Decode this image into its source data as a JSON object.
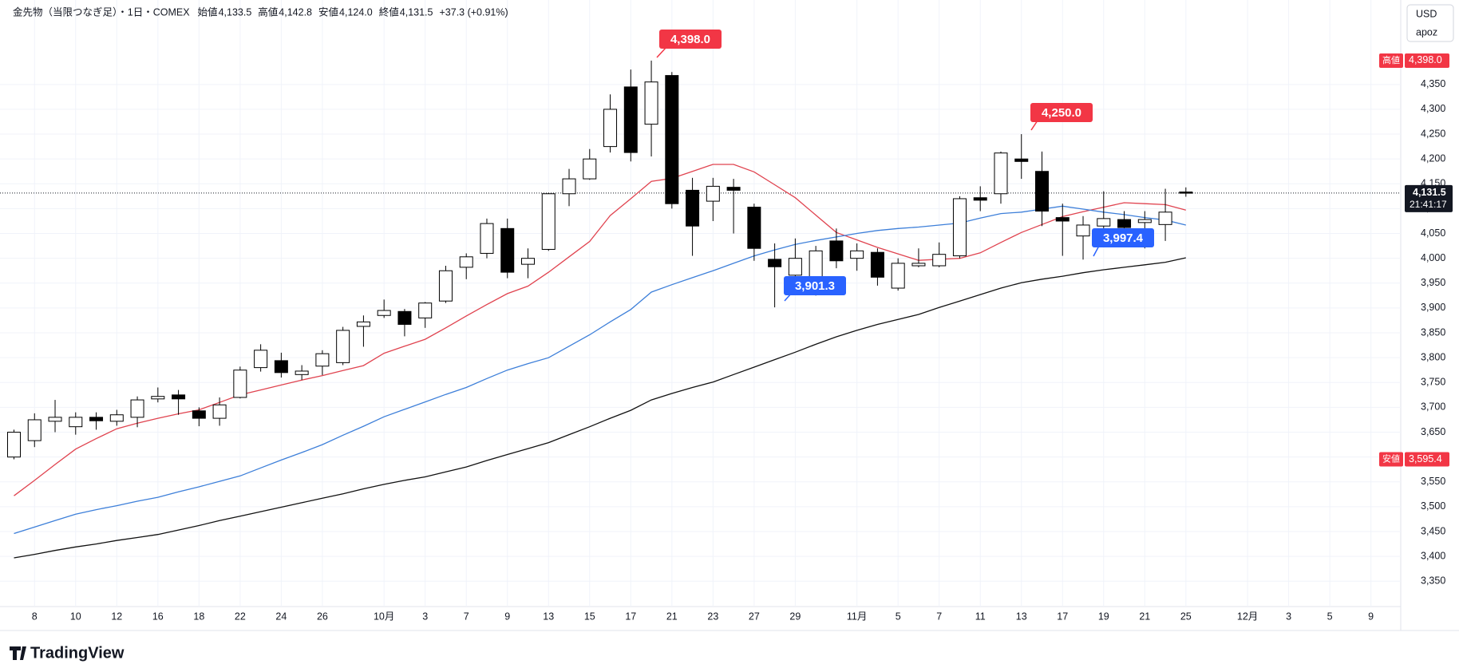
{
  "chart_data": {
    "type": "candlestick",
    "title": "金先物（当限つなぎ足）・1日・COMEX",
    "ohlc_legend": [
      {
        "name": "始値",
        "value": "4,133.5"
      },
      {
        "name": "高値",
        "value": "4,142.8"
      },
      {
        "name": "安値",
        "value": "4,124.0"
      },
      {
        "name": "終値",
        "value": "4,131.5"
      }
    ],
    "change": "+37.3 (+0.91%)",
    "currency": "USD",
    "user": "apoz",
    "brand": "TradingView",
    "categories": [
      null,
      "8",
      null,
      "10",
      null,
      "12",
      null,
      "16",
      null,
      "18",
      null,
      "22",
      null,
      "24",
      null,
      "26",
      null,
      null,
      "10月",
      null,
      "3",
      null,
      "7",
      null,
      "9",
      null,
      "13",
      null,
      "15",
      null,
      "17",
      null,
      "21",
      null,
      "23",
      null,
      "27",
      null,
      "29",
      null,
      null,
      "11月",
      null,
      "5",
      null,
      "7",
      null,
      "11",
      null,
      "13",
      null,
      "17",
      null,
      "19",
      null,
      "21",
      null,
      "25",
      null,
      null,
      "12月",
      null,
      "3",
      null,
      "5",
      null,
      "9"
    ],
    "open": [
      3600,
      3633,
      3672,
      3661,
      3680,
      3672,
      3680,
      3717,
      3725,
      3693,
      3678,
      3720,
      3780,
      3794,
      3766,
      3783,
      3790,
      3863,
      3885,
      3893,
      3880,
      3914,
      3982,
      4010,
      4060,
      3988,
      4018,
      4130,
      4160,
      4225,
      4345,
      4270,
      4368,
      4137,
      4115,
      4143,
      4103,
      3998,
      3966,
      3930,
      4035,
      4000,
      4012,
      3940,
      3985,
      3985,
      4005,
      4122,
      4130,
      4200,
      4175,
      4082,
      4045,
      4065,
      4078,
      4072,
      4068,
      4133.5,
      null,
      null,
      null,
      null,
      null,
      null,
      null,
      null,
      null
    ],
    "high": [
      3655,
      3688,
      3715,
      3690,
      3690,
      3695,
      3722,
      3740,
      3735,
      3700,
      3720,
      3782,
      3827,
      3810,
      3785,
      3815,
      3862,
      3885,
      3917,
      3898,
      3912,
      3985,
      4010,
      4080,
      4080,
      4020,
      4132,
      4180,
      4220,
      4330,
      4380,
      4398,
      4375,
      4162,
      4162,
      4160,
      4110,
      4030,
      4040,
      4025,
      4060,
      4030,
      4020,
      4000,
      4020,
      4032,
      4125,
      4145,
      4215,
      4250,
      4215,
      4110,
      4085,
      4135,
      4095,
      4095,
      4140,
      4142.8,
      null,
      null,
      null,
      null,
      null,
      null,
      null,
      null,
      null
    ],
    "low": [
      3595.4,
      3620,
      3650,
      3645,
      3655,
      3663,
      3660,
      3710,
      3685,
      3662,
      3663,
      3718,
      3772,
      3760,
      3755,
      3765,
      3785,
      3822,
      3880,
      3843,
      3860,
      3910,
      3958,
      4000,
      3960,
      3960,
      4015,
      4105,
      4158,
      4213,
      4195,
      4205,
      4100,
      4005,
      4075,
      4050,
      3995,
      3901.3,
      3930,
      3925,
      3980,
      3975,
      3945,
      3935,
      3982,
      3982,
      4000,
      4095,
      4110,
      4160,
      4065,
      4005,
      3997.4,
      4040,
      4040,
      4020,
      4035,
      4124.0,
      null,
      null,
      null,
      null,
      null,
      null,
      null,
      null,
      null
    ],
    "close": [
      3650,
      3675,
      3680,
      3680,
      3673,
      3685,
      3715,
      3722,
      3717,
      3678,
      3705,
      3775,
      3815,
      3770,
      3773,
      3808,
      3855,
      3872,
      3895,
      3867,
      3910,
      3975,
      4003,
      4070,
      3972,
      4000,
      4130,
      4160,
      4200,
      4300,
      4213,
      4355,
      4110,
      4065,
      4145,
      4137,
      4020,
      3983,
      4000,
      4015,
      3995,
      4015,
      3962,
      3990,
      3990,
      4008,
      4120,
      4117,
      4212,
      4195,
      4095,
      4075,
      4067,
      4080,
      4062,
      4078,
      4093,
      4131.5,
      null,
      null,
      null,
      null,
      null,
      null,
      null,
      null,
      null
    ],
    "up_color": "#ffffff",
    "down_color": "#000000",
    "series": [
      {
        "color": "#e0434f",
        "values": [
          3522,
          3553,
          3585,
          3616,
          3637,
          3657,
          3668,
          3678,
          3687,
          3695,
          3710,
          3725,
          3735,
          3745,
          3755,
          3764,
          3774,
          3784,
          3809,
          3823,
          3837,
          3860,
          3884,
          3907,
          3929,
          3944,
          3972,
          4003,
          4034,
          4086,
          4120,
          4155,
          4161,
          4175,
          4189,
          4189,
          4174,
          4148,
          4122,
          4087,
          4052,
          4037,
          4022,
          4009,
          3996,
          3998,
          4000,
          4011,
          4032,
          4052,
          4068,
          4084,
          4094,
          4103,
          4112,
          4110,
          4108,
          4097,
          null,
          null,
          null,
          null,
          null,
          null,
          null,
          null,
          null
        ]
      },
      {
        "color": "#3d7fd9",
        "values": [
          3446,
          3459,
          3472,
          3485,
          3494,
          3502,
          3511,
          3519,
          3530,
          3540,
          3551,
          3562,
          3578,
          3594,
          3609,
          3625,
          3644,
          3662,
          3681,
          3696,
          3711,
          3726,
          3740,
          3758,
          3775,
          3788,
          3800,
          3823,
          3846,
          3872,
          3897,
          3932,
          3947,
          3961,
          3975,
          3990,
          4005,
          4017,
          4028,
          4036,
          4043,
          4050,
          4056,
          4060,
          4063,
          4067,
          4071,
          4081,
          4090,
          4093,
          4099,
          4105,
          4099,
          4093,
          4088,
          4082,
          4077,
          4067,
          null,
          null,
          null,
          null,
          null,
          null,
          null,
          null,
          null
        ]
      },
      {
        "color": "#111111",
        "values": [
          3397,
          3404,
          3412,
          3419,
          3425,
          3432,
          3438,
          3444,
          3453,
          3462,
          3472,
          3481,
          3490,
          3499,
          3508,
          3517,
          3526,
          3536,
          3545,
          3553,
          3560,
          3570,
          3580,
          3593,
          3605,
          3617,
          3629,
          3645,
          3661,
          3678,
          3694,
          3715,
          3728,
          3740,
          3751,
          3766,
          3781,
          3796,
          3811,
          3827,
          3842,
          3855,
          3867,
          3877,
          3887,
          3901,
          3914,
          3927,
          3940,
          3951,
          3958,
          3964,
          3971,
          3977,
          3982,
          3987,
          3992,
          4001,
          null,
          null,
          null,
          null,
          null,
          null,
          null,
          null,
          null
        ]
      }
    ],
    "ylim": [
      3299,
      4520
    ],
    "yticks": [
      {
        "value": 3350,
        "label": "3,350"
      },
      {
        "value": 3400,
        "label": "3,400"
      },
      {
        "value": 3450,
        "label": "3,450"
      },
      {
        "value": 3500,
        "label": "3,500"
      },
      {
        "value": 3550,
        "label": "3,550"
      },
      {
        "value": 3600,
        "label": "3,600"
      },
      {
        "value": 3650,
        "label": "3,650"
      },
      {
        "value": 3700,
        "label": "3,700"
      },
      {
        "value": 3750,
        "label": "3,750"
      },
      {
        "value": 3800,
        "label": "3,800"
      },
      {
        "value": 3850,
        "label": "3,850"
      },
      {
        "value": 3900,
        "label": "3,900"
      },
      {
        "value": 3950,
        "label": "3,950"
      },
      {
        "value": 4000,
        "label": "4,000"
      },
      {
        "value": 4050,
        "label": "4,050"
      },
      {
        "value": 4100,
        "label": "4,100"
      },
      {
        "value": 4150,
        "label": "4,150"
      },
      {
        "value": 4200,
        "label": "4,200"
      },
      {
        "value": 4250,
        "label": "4,250"
      },
      {
        "value": 4300,
        "label": "4,300"
      },
      {
        "value": 4350,
        "label": "4,350"
      }
    ],
    "grid": true,
    "price_badges": [
      {
        "name": "高値",
        "value": 4398.0,
        "label": "4,398.0",
        "color": "#f23645"
      },
      {
        "name": "安値",
        "value": 3595.4,
        "label": "3,595.4",
        "color": "#f23645"
      }
    ],
    "current_price": {
      "value": 4131.5,
      "label": "4,131.5",
      "time": "21:41:17",
      "color": "#131722"
    },
    "annotations": [
      {
        "label": "4,398.0",
        "color": "#f23645"
      },
      {
        "label": "4,250.0",
        "color": "#f23645"
      },
      {
        "label": "3,901.3",
        "color": "#2962ff"
      },
      {
        "label": "3,997.4",
        "color": "#2962ff"
      }
    ]
  }
}
